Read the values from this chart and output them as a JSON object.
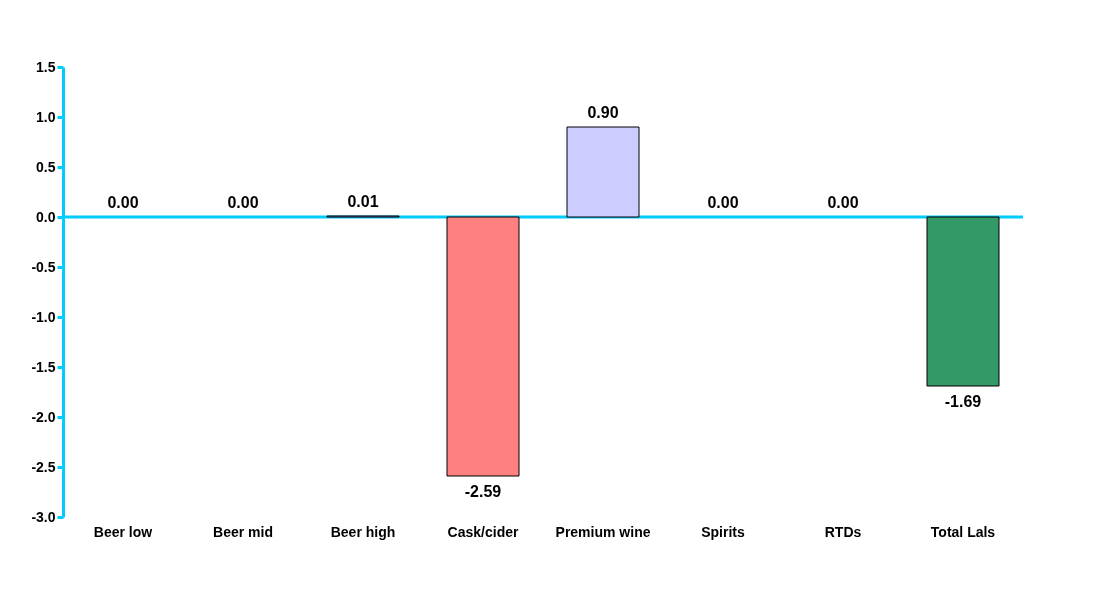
{
  "chart_data": {
    "type": "bar",
    "categories": [
      "Beer low",
      "Beer mid",
      "Beer high",
      "Cask/cider",
      "Premium wine",
      "Spirits",
      "RTDs",
      "Total Lals"
    ],
    "values": [
      0.0,
      0.0,
      0.01,
      -2.59,
      0.9,
      0.0,
      0.0,
      -1.69
    ],
    "colors": [
      null,
      null,
      "#9999ff",
      "#ff8080",
      "#ccccff",
      null,
      null,
      "#339966"
    ],
    "value_labels": [
      "0.00",
      "0.00",
      "0.01",
      "-2.59",
      "0.90",
      "0.00",
      "0.00",
      "-1.69"
    ],
    "ylim": [
      -3.0,
      1.5
    ],
    "yticks": [
      {
        "value": -3.0,
        "label": "-3.0"
      },
      {
        "value": -2.5,
        "label": "-2.5"
      },
      {
        "value": -2.0,
        "label": "-2.0"
      },
      {
        "value": -1.5,
        "label": "-1.5"
      },
      {
        "value": -1.0,
        "label": "-1.0"
      },
      {
        "value": -0.5,
        "label": "-0.5"
      },
      {
        "value": 0.0,
        "label": "0.0"
      },
      {
        "value": 0.5,
        "label": "0.5"
      },
      {
        "value": 1.0,
        "label": "1.0"
      },
      {
        "value": 1.5,
        "label": "1.5"
      }
    ],
    "ref_lines": [
      {
        "axis": "y",
        "value": 0,
        "color": "#00ccff"
      }
    ],
    "grid": false
  }
}
